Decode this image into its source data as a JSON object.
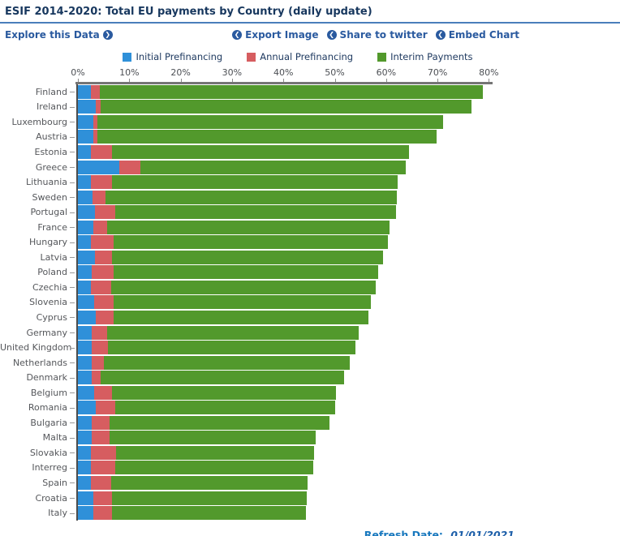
{
  "header": {
    "title": "ESIF 2014-2020: Total EU payments by Country (daily update)",
    "explore_label": "Explore this Data",
    "explore_icon": "❯",
    "action_icon": "❮",
    "actions": [
      {
        "label": "Export Image"
      },
      {
        "label": "Share to twitter"
      },
      {
        "label": "Embed Chart"
      }
    ]
  },
  "footer": {
    "refresh_label": "Refresh Date:",
    "refresh_date": "01/01/2021"
  },
  "colors": {
    "initial_prefinancing": "#2f90d9",
    "annual_prefinancing": "#d65d60",
    "interim_payments": "#52992c",
    "link_blue": "#2a5a9f",
    "title_navy": "#17375e",
    "rule_blue": "#4a7ebb"
  },
  "chart_data": {
    "type": "bar",
    "orientation": "horizontal",
    "stacked": true,
    "title": "ESIF 2014-2020: Total EU payments by Country (daily update)",
    "xlabel": "",
    "ylabel": "",
    "xlim": [
      0,
      80
    ],
    "x_ticks": [
      "0%",
      "10%",
      "20%",
      "30%",
      "40%",
      "50%",
      "60%",
      "70%",
      "80%"
    ],
    "grid": false,
    "legend_position": "top",
    "categories": [
      "Finland",
      "Ireland",
      "Luxembourg",
      "Austria",
      "Estonia",
      "Greece",
      "Lithuania",
      "Sweden",
      "Portugal",
      "France",
      "Hungary",
      "Latvia",
      "Poland",
      "Czechia",
      "Slovenia",
      "Cyprus",
      "Germany",
      "United Kingdom",
      "Netherlands",
      "Denmark",
      "Belgium",
      "Romania",
      "Bulgaria",
      "Malta",
      "Slovakia",
      "Interreg",
      "Spain",
      "Croatia",
      "Italy"
    ],
    "series": [
      {
        "name": "Initial Prefinancing",
        "color": "#2f90d9",
        "values": [
          2.6,
          3.5,
          3.0,
          3.0,
          2.6,
          8.1,
          2.6,
          2.9,
          3.3,
          3.0,
          2.6,
          3.3,
          2.7,
          2.6,
          3.2,
          3.5,
          2.7,
          2.7,
          2.7,
          2.7,
          3.2,
          3.5,
          2.7,
          2.7,
          2.6,
          2.6,
          2.6,
          3.0,
          3.0
        ]
      },
      {
        "name": "Annual Prefinancing",
        "color": "#d65d60",
        "values": [
          1.7,
          1.0,
          0.8,
          0.8,
          4.1,
          4.0,
          4.1,
          2.4,
          3.9,
          2.7,
          4.4,
          3.3,
          4.2,
          3.8,
          3.7,
          3.4,
          3.0,
          3.2,
          2.3,
          1.7,
          3.4,
          3.7,
          3.4,
          3.4,
          4.8,
          4.7,
          3.9,
          3.6,
          3.6
        ]
      },
      {
        "name": "Interim Payments",
        "color": "#52992c",
        "values": [
          74.5,
          72.1,
          67.3,
          66.1,
          57.8,
          51.7,
          55.5,
          56.8,
          54.7,
          55.0,
          53.3,
          52.8,
          51.6,
          51.6,
          50.1,
          49.6,
          49.0,
          48.2,
          47.9,
          47.4,
          43.6,
          42.9,
          42.9,
          40.2,
          38.5,
          38.5,
          38.2,
          37.9,
          37.8
        ]
      }
    ],
    "totals": [
      78.8,
      76.6,
      71.1,
      69.9,
      64.5,
      63.8,
      62.2,
      62.1,
      61.9,
      60.7,
      60.3,
      59.4,
      58.5,
      58.0,
      57.0,
      56.5,
      54.7,
      54.1,
      52.9,
      51.8,
      50.2,
      50.1,
      49.0,
      46.3,
      45.9,
      45.8,
      44.7,
      44.5,
      44.4
    ]
  }
}
